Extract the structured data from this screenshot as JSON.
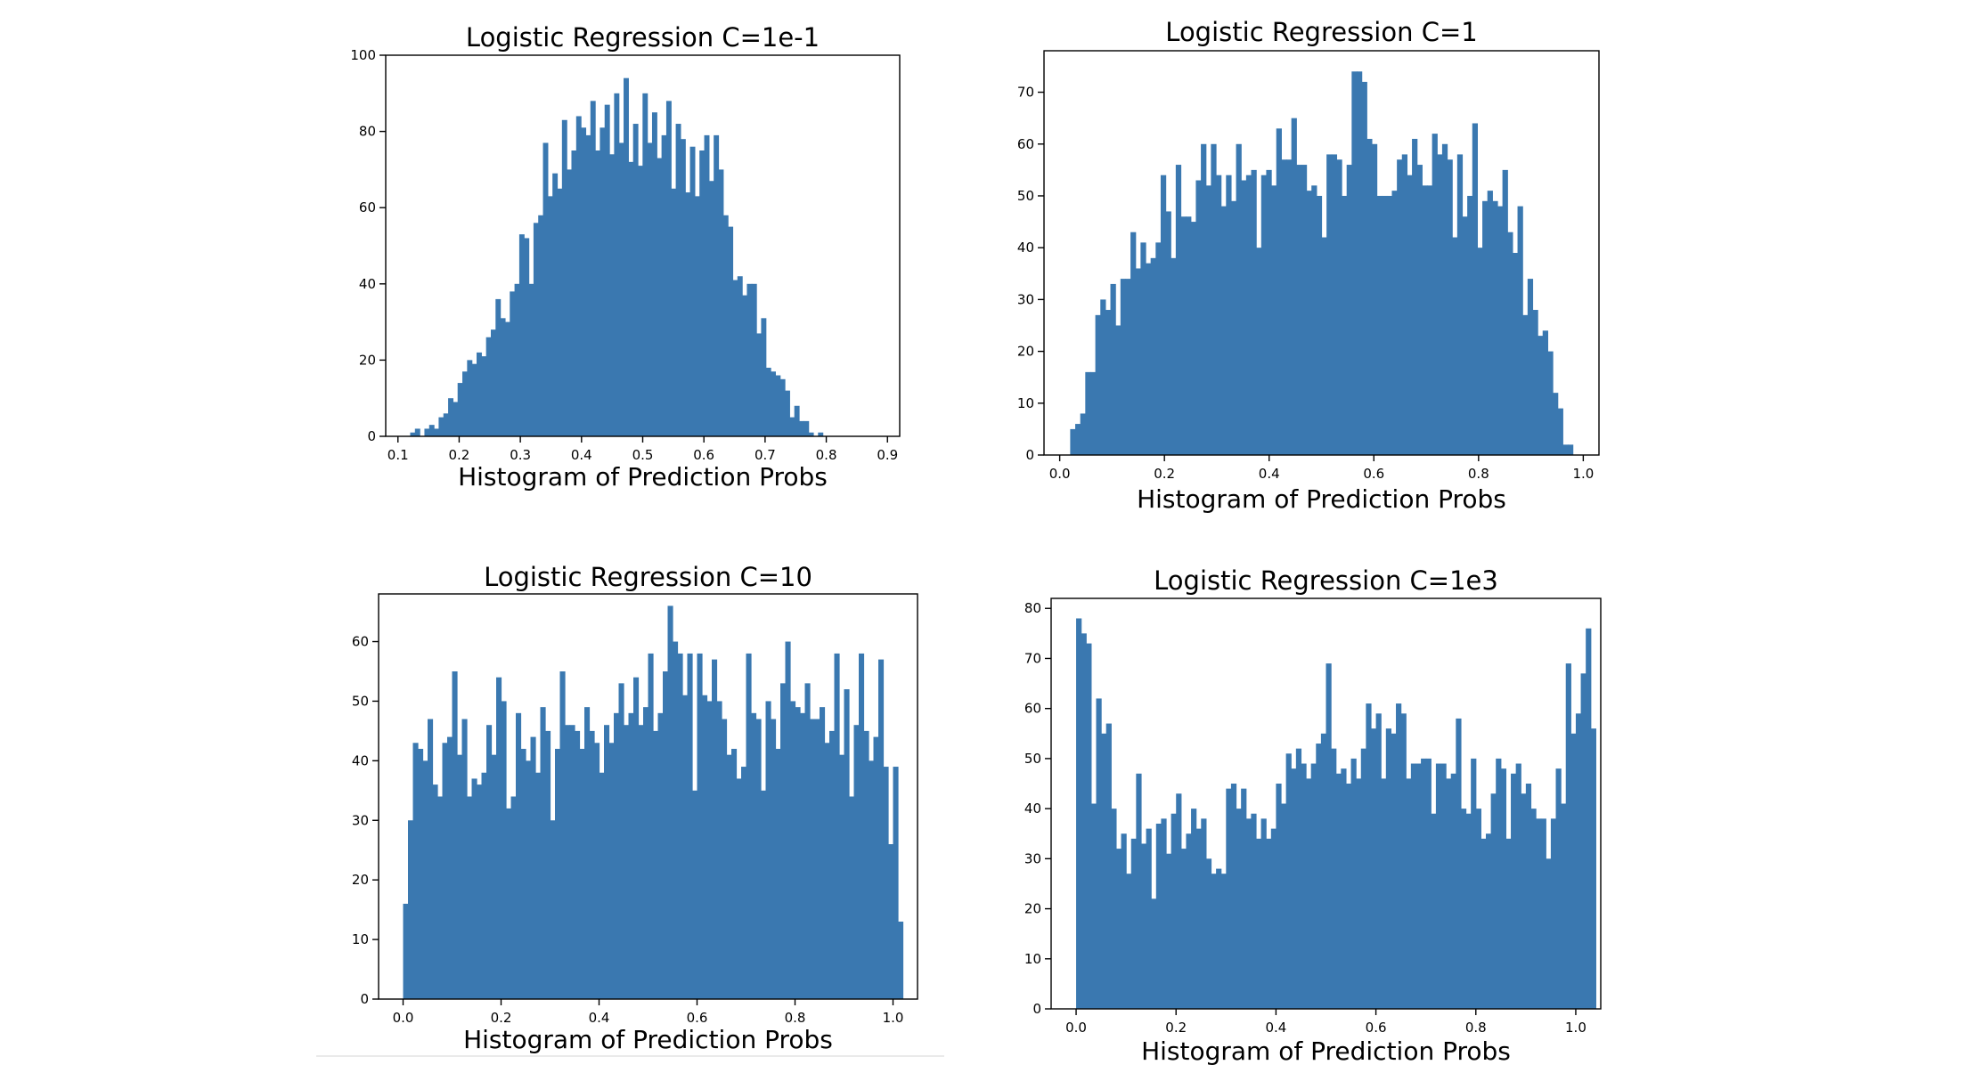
{
  "chart_data": [
    {
      "type": "bar",
      "title": "Logistic Regression C=1e-1",
      "xlabel": "Histogram of Prediction Probs",
      "ylabel": "",
      "xlim": [
        0.08,
        0.92
      ],
      "ylim": [
        0,
        100
      ],
      "xticks": [
        0.1,
        0.2,
        0.3,
        0.4,
        0.5,
        0.6,
        0.7,
        0.8,
        0.9
      ],
      "xtick_labels": [
        "0.1",
        "0.2",
        "0.3",
        "0.4",
        "0.5",
        "0.6",
        "0.7",
        "0.8",
        "0.9"
      ],
      "yticks": [
        0,
        20,
        40,
        60,
        80,
        100
      ],
      "ytick_labels": [
        "0",
        "20",
        "40",
        "60",
        "80",
        "100"
      ],
      "bin_start": 0.12,
      "bin_width": 0.00775,
      "values": [
        1,
        2,
        0,
        2,
        3,
        2,
        5,
        6,
        10,
        9,
        14,
        17,
        20,
        19,
        22,
        21,
        26,
        28,
        36,
        31,
        30,
        38,
        40,
        53,
        52,
        40,
        56,
        58,
        77,
        63,
        69,
        65,
        83,
        70,
        75,
        84,
        81,
        79,
        88,
        75,
        81,
        87,
        74,
        90,
        77,
        94,
        72,
        82,
        71,
        90,
        77,
        85,
        73,
        79,
        88,
        65,
        82,
        78,
        64,
        76,
        63,
        75,
        79,
        67,
        79,
        70,
        58,
        55,
        41,
        42,
        37,
        40,
        40,
        27,
        31,
        18,
        17,
        16,
        15,
        12,
        5,
        8,
        4,
        4,
        1,
        0,
        1,
        0
      ],
      "grid": false
    },
    {
      "type": "bar",
      "title": "Logistic Regression C=1",
      "xlabel": "Histogram of Prediction Probs",
      "ylabel": "",
      "xlim": [
        -0.03,
        1.03
      ],
      "ylim": [
        0,
        78
      ],
      "xticks": [
        0.0,
        0.2,
        0.4,
        0.6,
        0.8,
        1.0
      ],
      "xtick_labels": [
        "0.0",
        "0.2",
        "0.4",
        "0.6",
        "0.8",
        "1.0"
      ],
      "yticks": [
        0,
        10,
        20,
        30,
        40,
        50,
        60,
        70
      ],
      "ytick_labels": [
        "0",
        "10",
        "20",
        "30",
        "40",
        "50",
        "60",
        "70"
      ],
      "bin_start": 0.02,
      "bin_width": 0.0096,
      "values": [
        5,
        6,
        8,
        16,
        16,
        27,
        30,
        28,
        33,
        25,
        34,
        34,
        43,
        36,
        41,
        37,
        38,
        41,
        54,
        47,
        38,
        56,
        46,
        46,
        45,
        53,
        60,
        52,
        60,
        54,
        48,
        54,
        49,
        60,
        53,
        54,
        55,
        40,
        54,
        55,
        52,
        63,
        57,
        57,
        65,
        56,
        56,
        51,
        52,
        50,
        42,
        58,
        58,
        57,
        50,
        56,
        74,
        74,
        72,
        61,
        60,
        50,
        50,
        50,
        51,
        57,
        58,
        54,
        61,
        56,
        52,
        52,
        62,
        58,
        60,
        57,
        42,
        58,
        46,
        50,
        64,
        40,
        49,
        51,
        49,
        48,
        55,
        43,
        39,
        48,
        27,
        34,
        28,
        23,
        24,
        20,
        12,
        9,
        2,
        2,
        0
      ]
    },
    {
      "type": "bar",
      "title": "Logistic Regression C=10",
      "xlabel": "Histogram of Prediction Probs",
      "ylabel": "",
      "xlim": [
        -0.05,
        1.05
      ],
      "ylim": [
        0,
        68
      ],
      "xticks": [
        0.0,
        0.2,
        0.4,
        0.6,
        0.8,
        1.0
      ],
      "xtick_labels": [
        "0.0",
        "0.2",
        "0.4",
        "0.6",
        "0.8",
        "1.0"
      ],
      "yticks": [
        0,
        10,
        20,
        30,
        40,
        50,
        60
      ],
      "ytick_labels": [
        "0",
        "10",
        "20",
        "30",
        "40",
        "50",
        "60"
      ],
      "bin_start": 0.0,
      "bin_width": 0.01,
      "values": [
        16,
        30,
        43,
        42,
        40,
        47,
        36,
        34,
        43,
        44,
        55,
        41,
        47,
        34,
        37,
        36,
        38,
        46,
        41,
        54,
        50,
        32,
        34,
        48,
        42,
        40,
        44,
        38,
        49,
        45,
        30,
        42,
        55,
        46,
        46,
        45,
        42,
        49,
        45,
        43,
        38,
        46,
        43,
        48,
        53,
        46,
        48,
        54,
        46,
        49,
        58,
        45,
        48,
        55,
        66,
        60,
        58,
        51,
        58,
        35,
        58,
        51,
        50,
        57,
        50,
        47,
        41,
        42,
        37,
        39,
        58,
        48,
        47,
        35,
        50,
        47,
        42,
        53,
        60,
        50,
        49,
        48,
        53,
        47,
        47,
        49,
        43,
        45,
        58,
        41,
        52,
        34,
        46,
        58,
        45,
        40,
        44,
        57,
        39,
        26,
        39,
        13
      ]
    },
    {
      "type": "bar",
      "title": "Logistic Regression C=1e3",
      "xlabel": "Histogram of Prediction Probs",
      "ylabel": "",
      "xlim": [
        -0.05,
        1.05
      ],
      "ylim": [
        0,
        82
      ],
      "xticks": [
        0.0,
        0.2,
        0.4,
        0.6,
        0.8,
        1.0
      ],
      "xtick_labels": [
        "0.0",
        "0.2",
        "0.4",
        "0.6",
        "0.8",
        "1.0"
      ],
      "yticks": [
        0,
        10,
        20,
        30,
        40,
        50,
        60,
        70,
        80
      ],
      "ytick_labels": [
        "0",
        "10",
        "20",
        "30",
        "40",
        "50",
        "60",
        "70",
        "80"
      ],
      "bin_start": 0.0,
      "bin_width": 0.01,
      "values": [
        78,
        75,
        73,
        41,
        62,
        55,
        57,
        40,
        32,
        35,
        27,
        34,
        47,
        33,
        36,
        22,
        37,
        38,
        31,
        39,
        43,
        32,
        35,
        40,
        36,
        38,
        30,
        27,
        28,
        27,
        44,
        45,
        40,
        44,
        38,
        39,
        34,
        38,
        34,
        36,
        45,
        41,
        51,
        48,
        52,
        49,
        46,
        49,
        53,
        55,
        69,
        52,
        47,
        48,
        45,
        50,
        46,
        52,
        61,
        56,
        59,
        46,
        56,
        55,
        61,
        59,
        46,
        49,
        49,
        50,
        50,
        39,
        49,
        49,
        46,
        47,
        58,
        40,
        39,
        50,
        40,
        34,
        35,
        43,
        50,
        48,
        34,
        47,
        49,
        43,
        45,
        40,
        38,
        38,
        30,
        38,
        48,
        41,
        69,
        55,
        59,
        67,
        76,
        56
      ]
    }
  ]
}
